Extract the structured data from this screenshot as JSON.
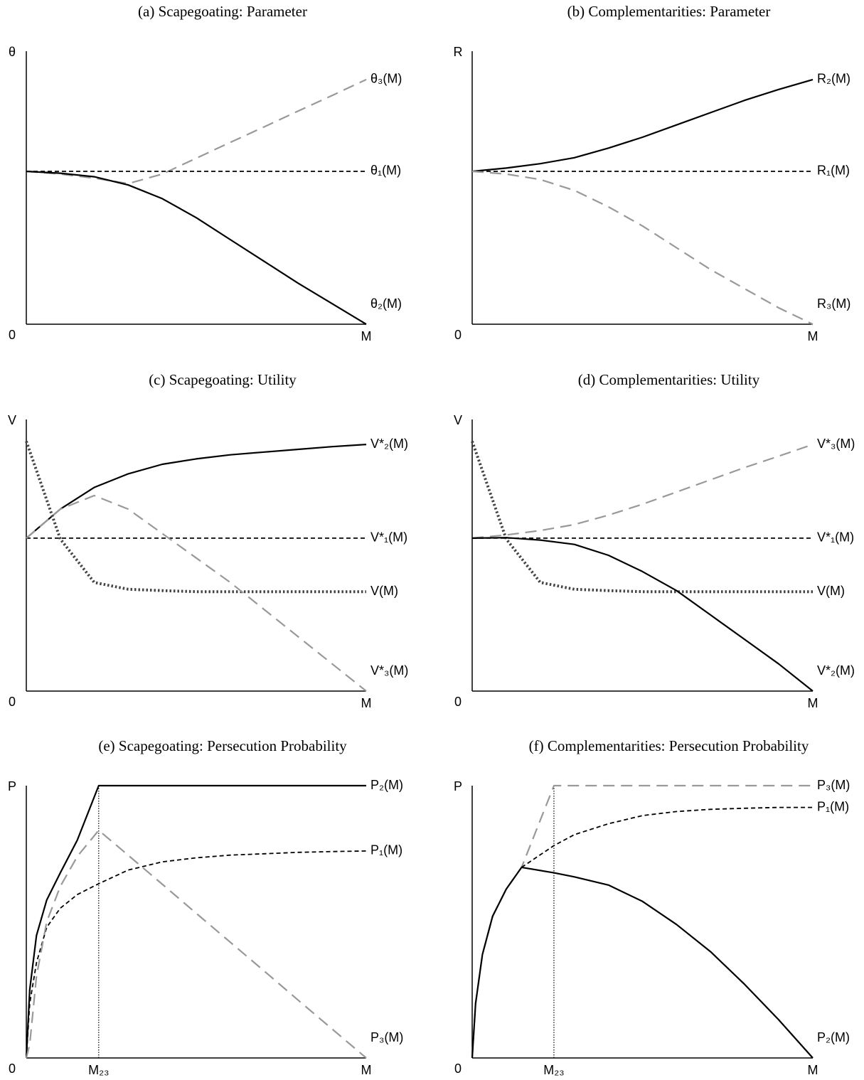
{
  "chart_data": [
    {
      "type": "line",
      "title": "(a) Scapegoating: Parameter",
      "ylabel": "θ",
      "origin_label": "0",
      "xlim": [
        0,
        1
      ],
      "ylim": [
        0,
        1
      ],
      "xticks": [
        {
          "value": 1,
          "label": "M"
        }
      ],
      "guides": false,
      "x": [
        0,
        0.1,
        0.2,
        0.3,
        0.4,
        0.5,
        0.6,
        0.7,
        0.8,
        0.9,
        1
      ],
      "series": [
        {
          "name": "θ₃(M)",
          "color": "#999999",
          "dash": "long",
          "values": [
            0.56,
            0.55,
            0.535,
            0.515,
            0.55,
            0.608,
            0.666,
            0.723,
            0.781,
            0.838,
            0.896
          ]
        },
        {
          "name": "θ₁(M)",
          "color": "#000000",
          "dash": "short",
          "values": [
            0.56,
            0.56,
            0.56,
            0.56,
            0.56,
            0.56,
            0.56,
            0.56,
            0.56,
            0.56,
            0.56
          ]
        },
        {
          "name": "θ₂(M)",
          "color": "#000000",
          "dash": "solid",
          "values": [
            0.56,
            0.553,
            0.54,
            0.51,
            0.46,
            0.39,
            0.31,
            0.23,
            0.15,
            0.075,
            0
          ]
        }
      ]
    },
    {
      "type": "line",
      "title": "(b) Complementarities: Parameter",
      "ylabel": "R",
      "origin_label": "0",
      "xlim": [
        0,
        1
      ],
      "ylim": [
        0,
        1
      ],
      "xticks": [
        {
          "value": 1,
          "label": "M"
        }
      ],
      "guides": false,
      "x": [
        0,
        0.1,
        0.2,
        0.3,
        0.4,
        0.5,
        0.6,
        0.7,
        0.8,
        0.9,
        1
      ],
      "series": [
        {
          "name": "R₂(M)",
          "color": "#000000",
          "dash": "solid",
          "values": [
            0.56,
            0.572,
            0.588,
            0.61,
            0.645,
            0.685,
            0.73,
            0.775,
            0.82,
            0.86,
            0.896
          ]
        },
        {
          "name": "R₁(M)",
          "color": "#000000",
          "dash": "short",
          "values": [
            0.56,
            0.56,
            0.56,
            0.56,
            0.56,
            0.56,
            0.56,
            0.56,
            0.56,
            0.56,
            0.56
          ]
        },
        {
          "name": "R₃(M)",
          "color": "#999999",
          "dash": "long",
          "values": [
            0.56,
            0.55,
            0.53,
            0.49,
            0.43,
            0.36,
            0.28,
            0.2,
            0.13,
            0.06,
            0
          ]
        }
      ]
    },
    {
      "type": "line",
      "title": "(c) Scapegoating: Utility",
      "ylabel": "V",
      "origin_label": "0",
      "xlim": [
        0,
        1
      ],
      "ylim": [
        0,
        1
      ],
      "xticks": [
        {
          "value": 1,
          "label": "M"
        }
      ],
      "guides": false,
      "x": [
        0,
        0.1,
        0.2,
        0.3,
        0.4,
        0.5,
        0.6,
        0.7,
        0.8,
        0.9,
        1
      ],
      "series": [
        {
          "name": "V*₂(M)",
          "color": "#000000",
          "dash": "solid",
          "values": [
            0.563,
            0.67,
            0.75,
            0.8,
            0.835,
            0.855,
            0.87,
            0.88,
            0.89,
            0.9,
            0.908
          ]
        },
        {
          "name": "V*₁(M)",
          "color": "#000000",
          "dash": "short",
          "values": [
            0.563,
            0.563,
            0.563,
            0.563,
            0.563,
            0.563,
            0.563,
            0.563,
            0.563,
            0.563,
            0.563
          ]
        },
        {
          "name": "V(M)",
          "color": "#444444",
          "dash": "dot",
          "values": [
            0.92,
            0.56,
            0.4,
            0.375,
            0.37,
            0.366,
            0.366,
            0.366,
            0.366,
            0.366,
            0.366
          ]
        },
        {
          "name": "V*₃(M)",
          "color": "#999999",
          "dash": "long",
          "values": [
            0.563,
            0.67,
            0.72,
            0.67,
            0.58,
            0.49,
            0.4,
            0.3,
            0.2,
            0.1,
            0
          ]
        }
      ]
    },
    {
      "type": "line",
      "title": "(d) Complementarities: Utility",
      "ylabel": "V",
      "origin_label": "0",
      "xlim": [
        0,
        1
      ],
      "ylim": [
        0,
        1
      ],
      "xticks": [
        {
          "value": 1,
          "label": "M"
        }
      ],
      "guides": false,
      "x": [
        0,
        0.1,
        0.2,
        0.3,
        0.4,
        0.5,
        0.6,
        0.7,
        0.8,
        0.9,
        1
      ],
      "series": [
        {
          "name": "V*₃(M)",
          "color": "#999999",
          "dash": "long",
          "values": [
            0.563,
            0.575,
            0.591,
            0.613,
            0.648,
            0.688,
            0.733,
            0.778,
            0.823,
            0.865,
            0.908
          ]
        },
        {
          "name": "V*₁(M)",
          "color": "#000000",
          "dash": "short",
          "values": [
            0.563,
            0.563,
            0.563,
            0.563,
            0.563,
            0.563,
            0.563,
            0.563,
            0.563,
            0.563,
            0.563
          ]
        },
        {
          "name": "V(M)",
          "color": "#444444",
          "dash": "dot",
          "values": [
            0.92,
            0.56,
            0.4,
            0.375,
            0.37,
            0.366,
            0.366,
            0.366,
            0.366,
            0.366,
            0.366
          ]
        },
        {
          "name": "V*₂(M)",
          "color": "#000000",
          "dash": "solid",
          "values": [
            0.563,
            0.565,
            0.556,
            0.54,
            0.5,
            0.44,
            0.37,
            0.28,
            0.19,
            0.1,
            0
          ]
        }
      ]
    },
    {
      "type": "line",
      "title": "(e) Scapegoating: Persecution Probability",
      "ylabel": "P",
      "origin_label": "0",
      "xlim": [
        0,
        1
      ],
      "ylim": [
        0,
        1
      ],
      "xticks": [
        {
          "value": 0.213,
          "label": "M₂₃"
        },
        {
          "value": 1,
          "label": "M"
        }
      ],
      "guides": true,
      "x": [
        0,
        0.01,
        0.03,
        0.06,
        0.1,
        0.15,
        0.213,
        0.3,
        0.4,
        0.5,
        0.6,
        0.7,
        0.8,
        0.9,
        1
      ],
      "series": [
        {
          "name": "P₂(M)",
          "color": "#000000",
          "dash": "solid",
          "values": [
            0,
            0.25,
            0.45,
            0.58,
            0.68,
            0.8,
            1,
            1,
            1,
            1,
            1,
            1,
            1,
            1,
            1
          ]
        },
        {
          "name": "P₁(M)",
          "color": "#000000",
          "dash": "short",
          "values": [
            0,
            0.2,
            0.35,
            0.48,
            0.55,
            0.6,
            0.64,
            0.69,
            0.72,
            0.735,
            0.745,
            0.75,
            0.755,
            0.758,
            0.76
          ]
        },
        {
          "name": "P₃(M)",
          "color": "#999999",
          "dash": "long",
          "values": [
            0,
            0.05,
            0.3,
            0.5,
            0.63,
            0.74,
            0.836,
            0.744,
            0.638,
            0.531,
            0.425,
            0.319,
            0.212,
            0.106,
            0
          ]
        }
      ]
    },
    {
      "type": "line",
      "title": "(f) Complementarities: Persecution Probability",
      "ylabel": "P",
      "origin_label": "0",
      "xlim": [
        0,
        1
      ],
      "ylim": [
        0,
        1
      ],
      "xticks": [
        {
          "value": 0.24,
          "label": "M₂₃"
        },
        {
          "value": 1,
          "label": "M"
        }
      ],
      "guides": true,
      "x": [
        0,
        0.01,
        0.03,
        0.06,
        0.1,
        0.145,
        0.24,
        0.3,
        0.4,
        0.5,
        0.6,
        0.7,
        0.8,
        0.9,
        1
      ],
      "series": [
        {
          "name": "P₃(M)",
          "color": "#999999",
          "dash": "long",
          "values": [
            0,
            0.2,
            0.38,
            0.52,
            0.62,
            0.7,
            1,
            1,
            1,
            1,
            1,
            1,
            1,
            1,
            1
          ]
        },
        {
          "name": "P₁(M)",
          "color": "#000000",
          "dash": "short",
          "values": [
            null,
            null,
            null,
            null,
            null,
            0.7,
            0.78,
            0.82,
            0.86,
            0.89,
            0.905,
            0.913,
            0.917,
            0.92,
            0.92
          ]
        },
        {
          "name": "P₂(M)",
          "color": "#000000",
          "dash": "solid",
          "values": [
            0,
            0.2,
            0.38,
            0.52,
            0.62,
            0.7,
            0.68,
            0.665,
            0.635,
            0.575,
            0.49,
            0.39,
            0.27,
            0.14,
            0
          ]
        }
      ]
    }
  ]
}
